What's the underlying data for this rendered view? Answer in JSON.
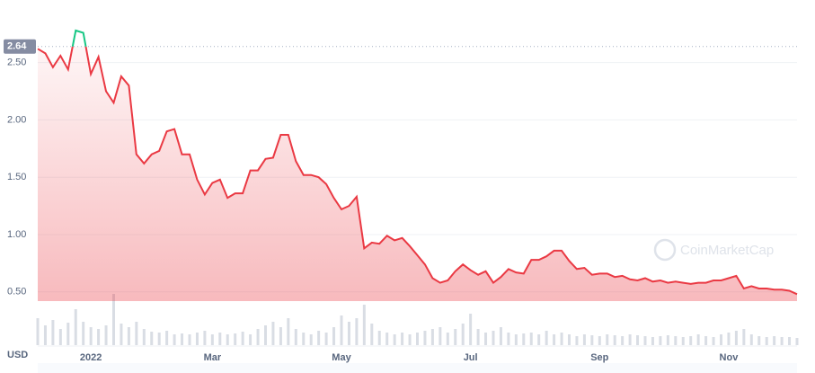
{
  "chart_data": {
    "type": "line",
    "currency": "USD",
    "watermark": "CoinMarketCap",
    "reference": 2.64,
    "up_color": "#16c784",
    "down_color": "#ea3943",
    "ylim": [
      0.42,
      2.85
    ],
    "yticks": [
      {
        "value": 0.5,
        "label": "0.50"
      },
      {
        "value": 1,
        "label": "1.00"
      },
      {
        "value": 1.5,
        "label": "1.50"
      },
      {
        "value": 2,
        "label": "2.00"
      },
      {
        "value": 2.5,
        "label": "2.50"
      }
    ],
    "grid": true,
    "categories": [
      null,
      null,
      null,
      null,
      null,
      null,
      null,
      "2022",
      null,
      null,
      null,
      null,
      null,
      null,
      null,
      null,
      null,
      null,
      null,
      null,
      null,
      null,
      null,
      "Mar",
      null,
      null,
      null,
      null,
      null,
      null,
      null,
      null,
      null,
      null,
      null,
      null,
      null,
      null,
      null,
      null,
      "May",
      null,
      null,
      null,
      null,
      null,
      null,
      null,
      null,
      null,
      null,
      null,
      null,
      null,
      null,
      null,
      null,
      "Jul",
      null,
      null,
      null,
      null,
      null,
      null,
      null,
      null,
      null,
      null,
      null,
      null,
      null,
      null,
      null,
      null,
      "Sep",
      null,
      null,
      null,
      null,
      null,
      null,
      null,
      null,
      null,
      null,
      null,
      null,
      null,
      null,
      null,
      null,
      "Nov",
      null,
      null,
      null,
      null,
      null,
      null,
      null,
      null,
      null
    ],
    "values": [
      2.62,
      2.58,
      2.46,
      2.56,
      2.44,
      2.78,
      2.76,
      2.4,
      2.55,
      2.25,
      2.15,
      2.38,
      2.3,
      1.7,
      1.62,
      1.7,
      1.73,
      1.9,
      1.92,
      1.7,
      1.7,
      1.48,
      1.35,
      1.45,
      1.48,
      1.32,
      1.36,
      1.36,
      1.56,
      1.56,
      1.66,
      1.67,
      1.87,
      1.87,
      1.64,
      1.52,
      1.52,
      1.5,
      1.44,
      1.32,
      1.22,
      1.25,
      1.33,
      0.88,
      0.93,
      0.92,
      0.99,
      0.95,
      0.97,
      0.9,
      0.82,
      0.74,
      0.62,
      0.58,
      0.6,
      0.68,
      0.74,
      0.69,
      0.65,
      0.68,
      0.58,
      0.63,
      0.7,
      0.67,
      0.66,
      0.78,
      0.78,
      0.81,
      0.86,
      0.86,
      0.77,
      0.7,
      0.71,
      0.65,
      0.66,
      0.66,
      0.63,
      0.64,
      0.61,
      0.6,
      0.62,
      0.59,
      0.6,
      0.58,
      0.59,
      0.58,
      0.57,
      0.58,
      0.58,
      0.6,
      0.6,
      0.62,
      0.64,
      0.53,
      0.55,
      0.53,
      0.53,
      0.52,
      0.52,
      0.51,
      0.48
    ],
    "volume": [
      30,
      22,
      28,
      18,
      25,
      40,
      26,
      20,
      18,
      22,
      57,
      24,
      20,
      26,
      18,
      15,
      14,
      16,
      12,
      13,
      12,
      14,
      16,
      12,
      14,
      12,
      13,
      15,
      12,
      18,
      22,
      26,
      20,
      30,
      18,
      14,
      12,
      16,
      14,
      20,
      33,
      26,
      30,
      45,
      24,
      16,
      14,
      12,
      14,
      12,
      14,
      16,
      18,
      20,
      14,
      18,
      24,
      35,
      18,
      14,
      16,
      20,
      14,
      12,
      13,
      14,
      12,
      16,
      12,
      14,
      12,
      10,
      12,
      11,
      10,
      12,
      11,
      10,
      12,
      11,
      10,
      9,
      10,
      11,
      10,
      9,
      10,
      12,
      10,
      9,
      12,
      14,
      16,
      18,
      12,
      10,
      9,
      10,
      9,
      9,
      8
    ]
  }
}
